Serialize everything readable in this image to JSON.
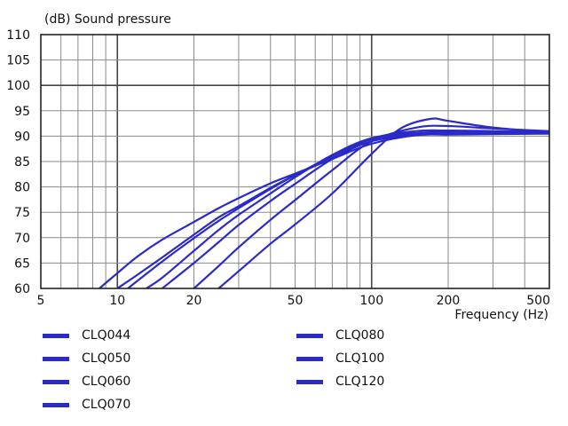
{
  "chart_data": {
    "type": "line",
    "title": "",
    "ylabel": "(dB)  Sound pressure",
    "xlabel": "Frequency  (Hz)",
    "x_scale": "log",
    "xlim": [
      5,
      500
    ],
    "ylim": [
      60,
      110
    ],
    "x_ticks": [
      5,
      10,
      20,
      50,
      100,
      200,
      500
    ],
    "x_tick_labels": [
      "5",
      "10",
      "20",
      "50",
      "100",
      "200",
      "500"
    ],
    "y_ticks": [
      60,
      65,
      70,
      75,
      80,
      85,
      90,
      95,
      100,
      105,
      110
    ],
    "y_tick_labels": [
      "60",
      "65",
      "70",
      "75",
      "80",
      "85",
      "90",
      "95",
      "100",
      "105",
      "110"
    ],
    "grid": true,
    "line_color": "#2a2ac8",
    "grid_color": "#8a8a8a",
    "major_grid_color": "#444444",
    "legend_position": "bottom",
    "series": [
      {
        "name": "CLQ044",
        "x": [
          8.5,
          10,
          12,
          15,
          20,
          25,
          30,
          40,
          50,
          70,
          100,
          150,
          200,
          300,
          500
        ],
        "y": [
          60,
          63,
          66.3,
          69.6,
          73.1,
          75.8,
          77.8,
          80.7,
          82.6,
          85.5,
          88.5,
          90.2,
          90.3,
          90.4,
          90.5
        ]
      },
      {
        "name": "CLQ050",
        "x": [
          10,
          12,
          15,
          20,
          25,
          30,
          40,
          50,
          70,
          100,
          150,
          200,
          300,
          500
        ],
        "y": [
          60,
          62.7,
          66.1,
          70.6,
          74,
          76.2,
          79.8,
          82.3,
          85.7,
          89,
          90.2,
          90.4,
          90.5,
          90.5
        ]
      },
      {
        "name": "CLQ060",
        "x": [
          11,
          12,
          15,
          20,
          25,
          30,
          40,
          50,
          70,
          100,
          150,
          200,
          300,
          500
        ],
        "y": [
          60,
          61.5,
          65.3,
          69.9,
          73.3,
          75.8,
          79.6,
          82.3,
          86.1,
          89.4,
          90.3,
          90.6,
          90.6,
          90.6
        ]
      },
      {
        "name": "CLQ070",
        "x": [
          13,
          15,
          20,
          25,
          30,
          40,
          50,
          70,
          100,
          150,
          200,
          300,
          500
        ],
        "y": [
          60,
          62.1,
          67.4,
          71.5,
          74.5,
          78.7,
          81.9,
          86.3,
          89.6,
          90.6,
          90.8,
          90.8,
          90.7
        ]
      },
      {
        "name": "CLQ080",
        "x": [
          15,
          20,
          25,
          30,
          40,
          50,
          70,
          100,
          150,
          200,
          300,
          500
        ],
        "y": [
          60,
          65,
          69.1,
          72.5,
          77.2,
          80.6,
          85.5,
          89.5,
          91,
          91.1,
          91,
          90.8
        ]
      },
      {
        "name": "CLQ100",
        "x": [
          20,
          25,
          30,
          40,
          50,
          70,
          100,
          150,
          200,
          300,
          500
        ],
        "y": [
          60,
          64.4,
          68.1,
          73.5,
          77.4,
          83.3,
          89,
          91.7,
          92,
          91.5,
          91
        ]
      },
      {
        "name": "CLQ120",
        "x": [
          25,
          30,
          40,
          50,
          70,
          100,
          130,
          170,
          200,
          300,
          500
        ],
        "y": [
          60,
          63.4,
          68.8,
          72.6,
          78.7,
          86.5,
          91.5,
          93.4,
          93,
          91.7,
          90.8
        ]
      }
    ]
  }
}
